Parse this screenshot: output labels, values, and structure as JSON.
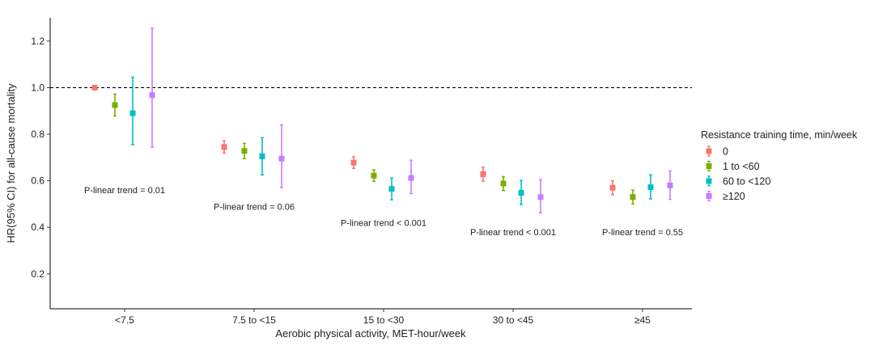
{
  "chart_data": {
    "type": "scatter",
    "xlabel": "Aerobic physical activity, MET-hour/week",
    "ylabel": "HR(95% CI) for all-cause mortality",
    "ylim": [
      0.05,
      1.3
    ],
    "yticks": [
      0.2,
      0.4,
      0.6,
      0.8,
      1.0,
      1.2
    ],
    "ytick_labels": [
      "0.2",
      "0.4",
      "0.6",
      "0.8",
      "1.0",
      "1.2"
    ],
    "reference_line": 1.0,
    "grid": false,
    "legend_position": "right",
    "legend_title": "Resistance training time, min/week",
    "categories": [
      "<7.5",
      "7.5 to <15",
      "15 to <30",
      "30 to <45",
      "≥45"
    ],
    "series": [
      {
        "name": "0",
        "color": "#F8766D",
        "values": [
          1.0,
          0.745,
          0.678,
          0.628,
          0.57
        ],
        "lower": [
          1.0,
          0.718,
          0.653,
          0.598,
          0.54
        ],
        "upper": [
          1.0,
          0.772,
          0.703,
          0.658,
          0.6
        ]
      },
      {
        "name": "1 to <60",
        "color": "#7CAE00",
        "values": [
          0.925,
          0.728,
          0.622,
          0.588,
          0.53
        ],
        "lower": [
          0.878,
          0.695,
          0.597,
          0.558,
          0.5
        ],
        "upper": [
          0.972,
          0.761,
          0.647,
          0.618,
          0.56
        ]
      },
      {
        "name": "60 to <120",
        "color": "#00BFC4",
        "values": [
          0.89,
          0.705,
          0.565,
          0.548,
          0.572
        ],
        "lower": [
          0.755,
          0.625,
          0.518,
          0.498,
          0.522
        ],
        "upper": [
          1.045,
          0.785,
          0.612,
          0.602,
          0.625
        ]
      },
      {
        "name": "≥120",
        "color": "#C77CFF",
        "values": [
          0.968,
          0.695,
          0.612,
          0.53,
          0.58
        ],
        "lower": [
          0.745,
          0.57,
          0.545,
          0.462,
          0.52
        ],
        "upper": [
          1.255,
          0.84,
          0.688,
          0.605,
          0.642
        ]
      }
    ],
    "annotations": [
      {
        "text": "P-linear trend = 0.01",
        "category": 0,
        "y": 0.56
      },
      {
        "text": "P-linear trend = 0.06",
        "category": 1,
        "y": 0.49
      },
      {
        "text": "P-linear trend < 0.001",
        "category": 2,
        "y": 0.42
      },
      {
        "text": "P-linear trend < 0.001",
        "category": 3,
        "y": 0.38
      },
      {
        "text": "P-linear trend = 0.55",
        "category": 4,
        "y": 0.38
      }
    ]
  }
}
